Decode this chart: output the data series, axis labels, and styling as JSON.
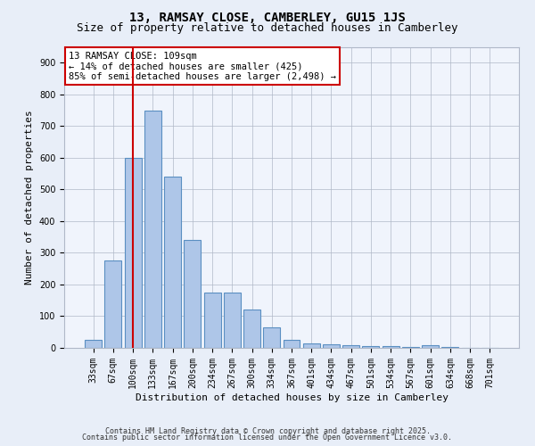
{
  "title1": "13, RAMSAY CLOSE, CAMBERLEY, GU15 1JS",
  "title2": "Size of property relative to detached houses in Camberley",
  "xlabel": "Distribution of detached houses by size in Camberley",
  "ylabel": "Number of detached properties",
  "categories": [
    "33sqm",
    "67sqm",
    "100sqm",
    "133sqm",
    "167sqm",
    "200sqm",
    "234sqm",
    "267sqm",
    "300sqm",
    "334sqm",
    "367sqm",
    "401sqm",
    "434sqm",
    "467sqm",
    "501sqm",
    "534sqm",
    "567sqm",
    "601sqm",
    "634sqm",
    "668sqm",
    "701sqm"
  ],
  "values": [
    25,
    275,
    600,
    750,
    540,
    340,
    175,
    175,
    120,
    65,
    25,
    15,
    12,
    8,
    5,
    5,
    3,
    8,
    2,
    0,
    0
  ],
  "bar_color": "#aec6e8",
  "bar_edge_color": "#5a8fc2",
  "red_line_index": 2,
  "annotation_text": "13 RAMSAY CLOSE: 109sqm\n← 14% of detached houses are smaller (425)\n85% of semi-detached houses are larger (2,498) →",
  "annotation_box_color": "#ffffff",
  "annotation_box_edge": "#cc0000",
  "ylim": [
    0,
    950
  ],
  "yticks": [
    0,
    100,
    200,
    300,
    400,
    500,
    600,
    700,
    800,
    900
  ],
  "bg_color": "#e8eef8",
  "plot_bg_color": "#f0f4fc",
  "footer1": "Contains HM Land Registry data © Crown copyright and database right 2025.",
  "footer2": "Contains public sector information licensed under the Open Government Licence v3.0.",
  "title1_fontsize": 10,
  "title2_fontsize": 9,
  "xlabel_fontsize": 8,
  "ylabel_fontsize": 8,
  "tick_fontsize": 7,
  "footer_fontsize": 6,
  "annot_fontsize": 7.5
}
